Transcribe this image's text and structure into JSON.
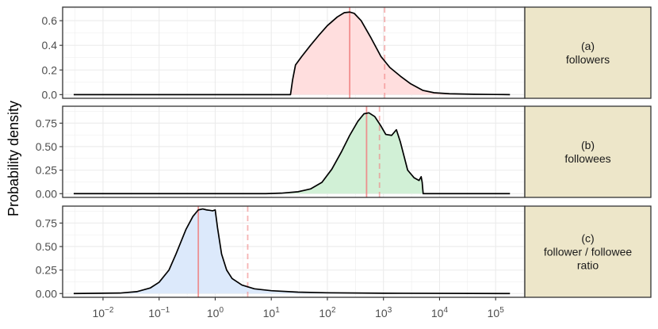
{
  "chart_data": {
    "type": "area",
    "ylabel": "Probability density",
    "x_scale": "log10",
    "x_ticks": [
      {
        "value": 0.01,
        "base": "10",
        "exp": "−2"
      },
      {
        "value": 0.1,
        "base": "10",
        "exp": "−1"
      },
      {
        "value": 1,
        "base": "10",
        "exp": "0"
      },
      {
        "value": 10,
        "base": "10",
        "exp": "1"
      },
      {
        "value": 100,
        "base": "10",
        "exp": "2"
      },
      {
        "value": 1000,
        "base": "10",
        "exp": "3"
      },
      {
        "value": 10000,
        "base": "10",
        "exp": "4"
      },
      {
        "value": 100000,
        "base": "10",
        "exp": "5"
      }
    ],
    "grid": true,
    "colors": {
      "line": "#000000",
      "vline": "#f08080",
      "strip_fill": "#ede6c9",
      "panel_border": "#333333",
      "grid": "#ebebeb"
    },
    "panels": [
      {
        "strip_lines": [
          "(a)",
          "followers"
        ],
        "fill": "#ffdede",
        "ylim": [
          -0.03,
          0.71
        ],
        "yticks": [
          0.0,
          0.2,
          0.4,
          0.6
        ],
        "ytick_labels": [
          "0.0",
          "0.2",
          "0.4",
          "0.6"
        ],
        "median": 250,
        "mean": 1050,
        "x": [
          0.003,
          22,
          24,
          27,
          35,
          50,
          70,
          100,
          150,
          200,
          250,
          300,
          400,
          600,
          900,
          1300,
          2000,
          3000,
          5000,
          8000,
          15000,
          40000,
          100000,
          180000
        ],
        "y": [
          0.0,
          0.0,
          0.12,
          0.24,
          0.31,
          0.4,
          0.48,
          0.56,
          0.63,
          0.665,
          0.67,
          0.66,
          0.6,
          0.46,
          0.31,
          0.22,
          0.15,
          0.09,
          0.035,
          0.015,
          0.007,
          0.003,
          0.001,
          0.0
        ]
      },
      {
        "strip_lines": [
          "(b)",
          "followees"
        ],
        "fill": "#d1f0d6",
        "ylim": [
          -0.04,
          0.93
        ],
        "yticks": [
          0.0,
          0.25,
          0.5,
          0.75
        ],
        "ytick_labels": [
          "0.00",
          "0.25",
          "0.50",
          "0.75"
        ],
        "median": 500,
        "mean": 850,
        "x": [
          0.003,
          8,
          15,
          30,
          50,
          80,
          120,
          180,
          250,
          350,
          450,
          550,
          700,
          900,
          1100,
          1400,
          1700,
          2000,
          2700,
          3500,
          4300,
          4700,
          4900,
          5100,
          180000
        ],
        "y": [
          0.0,
          0.0,
          0.005,
          0.02,
          0.05,
          0.12,
          0.26,
          0.45,
          0.62,
          0.77,
          0.85,
          0.86,
          0.82,
          0.72,
          0.63,
          0.62,
          0.68,
          0.55,
          0.25,
          0.17,
          0.14,
          0.18,
          0.12,
          0.0,
          0.0
        ]
      },
      {
        "strip_lines": [
          "(c)",
          "follower / followee",
          "ratio"
        ],
        "fill": "#dce9fb",
        "ylim": [
          -0.04,
          0.93
        ],
        "yticks": [
          0.0,
          0.25,
          0.5,
          0.75
        ],
        "ytick_labels": [
          "0.00",
          "0.25",
          "0.50",
          "0.75"
        ],
        "median": 0.5,
        "mean": 3.8,
        "x": [
          0.003,
          0.02,
          0.04,
          0.07,
          0.1,
          0.15,
          0.2,
          0.3,
          0.4,
          0.5,
          0.6,
          0.7,
          0.8,
          0.9,
          1.0,
          1.1,
          1.3,
          1.6,
          2,
          3,
          5,
          10,
          30,
          100,
          1000,
          180000
        ],
        "y": [
          0.0,
          0.005,
          0.02,
          0.06,
          0.12,
          0.25,
          0.42,
          0.68,
          0.82,
          0.89,
          0.9,
          0.89,
          0.885,
          0.88,
          0.89,
          0.7,
          0.42,
          0.25,
          0.16,
          0.09,
          0.05,
          0.03,
          0.015,
          0.008,
          0.003,
          0.0
        ]
      }
    ]
  }
}
